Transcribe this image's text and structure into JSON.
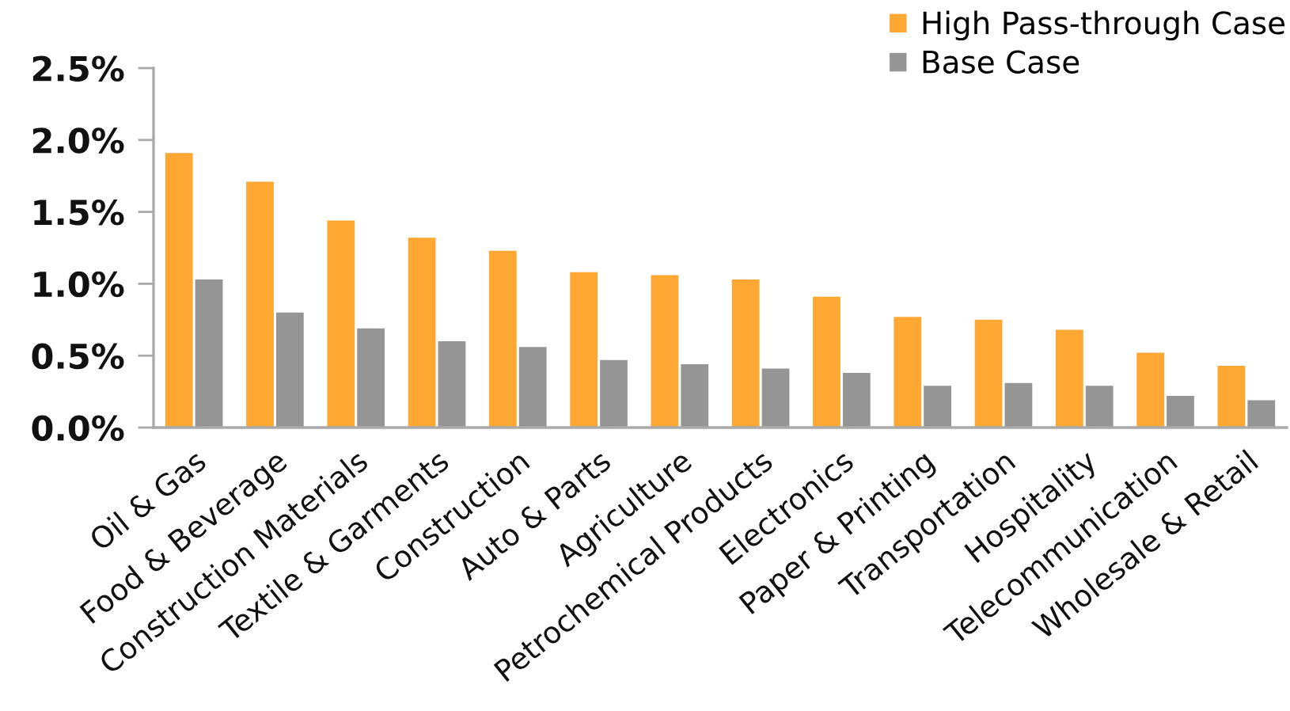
{
  "chart_data": {
    "type": "bar",
    "categories": [
      "Oil & Gas",
      "Food & Beverage",
      "Construction Materials",
      "Textile & Garments",
      "Construction",
      "Auto & Parts",
      "Agriculture",
      "Petrochemical Products",
      "Electronics",
      "Paper & Printing",
      "Transportation",
      "Hospitality",
      "Telecommunication",
      "Wholesale & Retail"
    ],
    "series": [
      {
        "name": "High Pass-through Case",
        "color": "#ffa733",
        "values": [
          1.91,
          1.71,
          1.44,
          1.32,
          1.23,
          1.08,
          1.06,
          1.03,
          0.91,
          0.77,
          0.75,
          0.68,
          0.52,
          0.43
        ]
      },
      {
        "name": "Base Case",
        "color": "#959595",
        "values": [
          1.03,
          0.8,
          0.69,
          0.6,
          0.56,
          0.47,
          0.44,
          0.41,
          0.38,
          0.29,
          0.31,
          0.29,
          0.22,
          0.19
        ]
      }
    ],
    "ylim": [
      0,
      2.5
    ],
    "yticks": [
      {
        "value": 0,
        "label": "0.0%"
      },
      {
        "value": 0.5,
        "label": "0.5%"
      },
      {
        "value": 1.0,
        "label": "1.0%"
      },
      {
        "value": 1.5,
        "label": "1.5%"
      },
      {
        "value": 2.0,
        "label": "2.0%"
      },
      {
        "value": 2.5,
        "label": "2.5%"
      }
    ],
    "legend": "top right"
  }
}
